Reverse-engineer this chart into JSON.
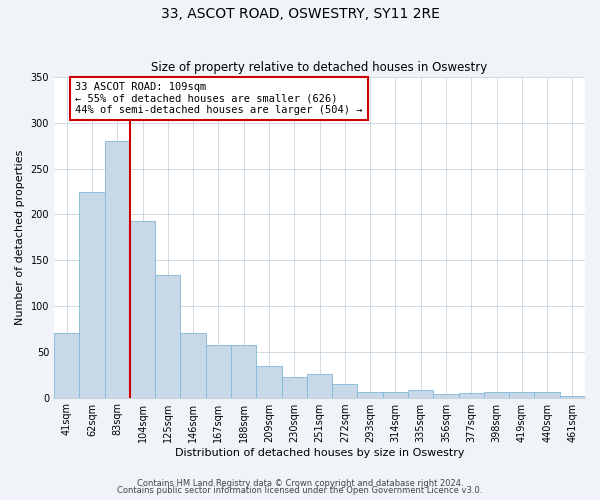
{
  "title": "33, ASCOT ROAD, OSWESTRY, SY11 2RE",
  "subtitle": "Size of property relative to detached houses in Oswestry",
  "xlabel": "Distribution of detached houses by size in Oswestry",
  "ylabel": "Number of detached properties",
  "bar_labels": [
    "41sqm",
    "62sqm",
    "83sqm",
    "104sqm",
    "125sqm",
    "146sqm",
    "167sqm",
    "188sqm",
    "209sqm",
    "230sqm",
    "251sqm",
    "272sqm",
    "293sqm",
    "314sqm",
    "335sqm",
    "356sqm",
    "377sqm",
    "398sqm",
    "419sqm",
    "440sqm",
    "461sqm"
  ],
  "bar_values": [
    70,
    224,
    280,
    193,
    134,
    70,
    57,
    57,
    35,
    22,
    26,
    15,
    6,
    6,
    8,
    4,
    5,
    6,
    6,
    6,
    2
  ],
  "bar_color": "#c8d8e8",
  "bar_edge_color": "#7fb8d8",
  "vline_color": "#cc0000",
  "annotation_title": "33 ASCOT ROAD: 109sqm",
  "annotation_line1": "← 55% of detached houses are smaller (626)",
  "annotation_line2": "44% of semi-detached houses are larger (504) →",
  "annotation_box_edge": "#cc0000",
  "ylim": [
    0,
    350
  ],
  "yticks": [
    0,
    50,
    100,
    150,
    200,
    250,
    300,
    350
  ],
  "footer1": "Contains HM Land Registry data © Crown copyright and database right 2024.",
  "footer2": "Contains public sector information licensed under the Open Government Licence v3.0.",
  "background_color": "#f0f4f8",
  "plot_background_color": "#ffffff",
  "title_fontsize": 10,
  "subtitle_fontsize": 8.5,
  "tick_fontsize": 7,
  "axis_label_fontsize": 8,
  "annotation_fontsize": 7.5,
  "footer_fontsize": 6
}
